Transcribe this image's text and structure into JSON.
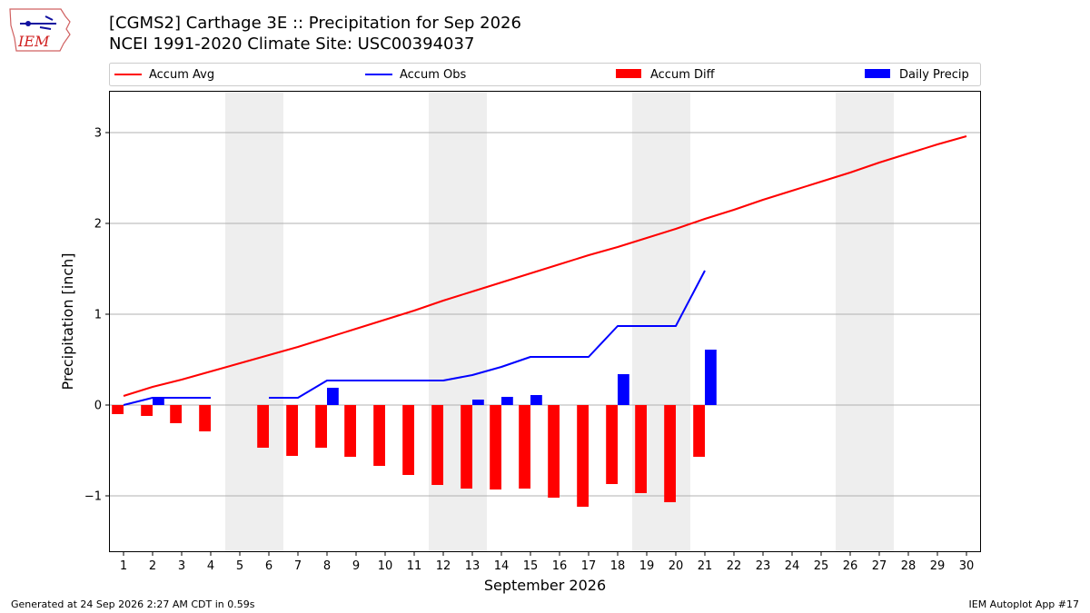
{
  "title_line1": "[CGMS2] Carthage 3E :: Precipitation for Sep 2026",
  "title_line2": "NCEI 1991-2020 Climate Site: USC00394037",
  "logo_text": "IEM",
  "footer_left": "Generated at 24 Sep 2026 2:27 AM CDT in 0.59s",
  "footer_right": "IEM Autoplot App #17",
  "colors": {
    "avg": "#ff0000",
    "obs": "#0000ff",
    "diff": "#ff0000",
    "daily": "#0000ff",
    "weekend": "#eeeeee",
    "grid": "#b0b0b0"
  },
  "chart_data": {
    "type": "bar",
    "xlabel": "September 2026",
    "ylabel": "Precipitation [inch]",
    "xlim": [
      0.5,
      30.5
    ],
    "ylim": [
      -1.62,
      3.46
    ],
    "yticks": [
      -1,
      0,
      1,
      2,
      3
    ],
    "ytick_labels": [
      "−1",
      "0",
      "1",
      "2",
      "3"
    ],
    "grid": "y",
    "legend_position": "top",
    "weekend_days": [
      5,
      6,
      12,
      13,
      19,
      20,
      26,
      27
    ],
    "days": [
      1,
      2,
      3,
      4,
      5,
      6,
      7,
      8,
      9,
      10,
      11,
      12,
      13,
      14,
      15,
      16,
      17,
      18,
      19,
      20,
      21,
      22,
      23,
      24,
      25,
      26,
      27,
      28,
      29,
      30
    ],
    "series": [
      {
        "name": "Accum Avg",
        "kind": "line",
        "values": [
          0.1,
          0.2,
          0.28,
          0.37,
          0.46,
          0.55,
          0.64,
          0.74,
          0.84,
          0.94,
          1.04,
          1.15,
          1.25,
          1.35,
          1.45,
          1.55,
          1.65,
          1.74,
          1.84,
          1.94,
          2.05,
          2.15,
          2.26,
          2.36,
          2.46,
          2.56,
          2.67,
          2.77,
          2.87,
          2.96
        ]
      },
      {
        "name": "Accum Obs",
        "kind": "line",
        "values": [
          0.0,
          0.08,
          0.08,
          0.08,
          null,
          0.08,
          0.08,
          0.27,
          0.27,
          0.27,
          0.27,
          0.27,
          0.33,
          0.42,
          0.53,
          0.53,
          0.53,
          0.87,
          0.87,
          0.87,
          1.48,
          null,
          null,
          null,
          null,
          null,
          null,
          null,
          null,
          null
        ]
      },
      {
        "name": "Accum Diff",
        "kind": "bar",
        "values": [
          -0.1,
          -0.12,
          -0.2,
          -0.29,
          null,
          -0.47,
          -0.56,
          -0.47,
          -0.57,
          -0.67,
          -0.77,
          -0.88,
          -0.92,
          -0.93,
          -0.92,
          -1.02,
          -1.12,
          -0.87,
          -0.97,
          -1.07,
          -0.57,
          null,
          null,
          null,
          null,
          null,
          null,
          null,
          null,
          null
        ]
      },
      {
        "name": "Daily Precip",
        "kind": "bar",
        "values": [
          0.0,
          0.08,
          0.0,
          0.0,
          null,
          0.0,
          0.0,
          0.19,
          0.0,
          0.0,
          0.0,
          0.0,
          0.06,
          0.09,
          0.11,
          0.0,
          0.0,
          0.34,
          0.0,
          0.0,
          0.61,
          null,
          null,
          null,
          null,
          null,
          null,
          null,
          null,
          null
        ]
      }
    ]
  }
}
